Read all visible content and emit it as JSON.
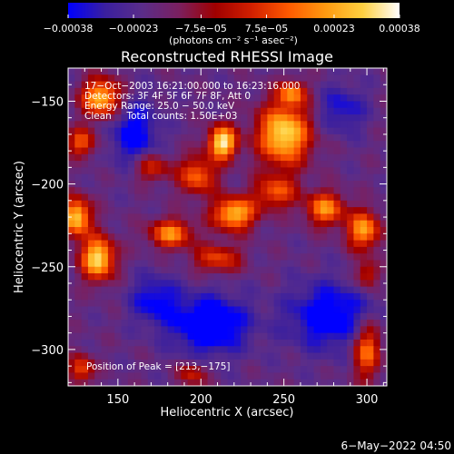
{
  "chart_data": {
    "type": "heatmap",
    "title": "Reconstructed RHESSI Image",
    "xlabel": "Heliocentric X (arcsec)",
    "ylabel": "Heliocentric Y (arcsec)",
    "xlim": [
      120,
      312
    ],
    "ylim": [
      -322,
      -130
    ],
    "x_ticks": [
      150,
      200,
      250,
      300
    ],
    "x_tick_labels": [
      "150",
      "200",
      "250",
      "300"
    ],
    "y_ticks": [
      -150,
      -200,
      -250,
      -300
    ],
    "y_tick_labels": [
      "−150",
      "−200",
      "−250",
      "−300"
    ],
    "colorbar": {
      "range": [
        -0.00038,
        0.00038
      ],
      "ticks": [
        -0.00038,
        -0.00023,
        -7.5e-05,
        7.5e-05,
        0.00023,
        0.00038
      ],
      "tick_labels": [
        "−0.00038",
        "−0.00023",
        "−7.5e−05",
        "7.5e−05",
        "0.00023",
        "0.00038"
      ],
      "unit_label": "(photons cm⁻² s⁻¹ asec⁻²)"
    },
    "annotations": [
      "17−Oct−2003 16:21:00.000 to 16:23:16.000",
      "Detectors: 3F 4F 5F 6F 7F 8F, Att 0",
      "Energy Range: 25.0 − 50.0 keV",
      "Clean     Total counts: 1.50E+03"
    ],
    "peak_label": "Position of Peak = [213,−175]",
    "peak": [
      213,
      -175
    ],
    "sources": [
      {
        "x": 213,
        "y": -175,
        "sx": 6,
        "sy": 7,
        "amp": 1.0
      },
      {
        "x": 250,
        "y": -170,
        "sx": 11,
        "sy": 13,
        "amp": 0.95
      },
      {
        "x": 245,
        "y": -205,
        "sx": 9,
        "sy": 7,
        "amp": 0.55
      },
      {
        "x": 220,
        "y": -218,
        "sx": 9,
        "sy": 7,
        "amp": 0.85
      },
      {
        "x": 198,
        "y": -195,
        "sx": 8,
        "sy": 8,
        "amp": 0.6
      },
      {
        "x": 182,
        "y": -230,
        "sx": 9,
        "sy": 6,
        "amp": 0.7
      },
      {
        "x": 210,
        "y": -245,
        "sx": 10,
        "sy": 6,
        "amp": 0.5
      },
      {
        "x": 140,
        "y": -148,
        "sx": 8,
        "sy": 8,
        "amp": 0.85
      },
      {
        "x": 125,
        "y": -220,
        "sx": 6,
        "sy": 8,
        "amp": 0.9
      },
      {
        "x": 138,
        "y": -245,
        "sx": 7,
        "sy": 9,
        "amp": 0.95
      },
      {
        "x": 128,
        "y": -175,
        "sx": 6,
        "sy": 6,
        "amp": 0.55
      },
      {
        "x": 275,
        "y": -215,
        "sx": 8,
        "sy": 7,
        "amp": 0.7
      },
      {
        "x": 298,
        "y": -228,
        "sx": 7,
        "sy": 8,
        "amp": 0.75
      },
      {
        "x": 170,
        "y": -190,
        "sx": 8,
        "sy": 6,
        "amp": 0.45
      },
      {
        "x": 300,
        "y": -300,
        "sx": 6,
        "sy": 12,
        "amp": 0.65
      },
      {
        "x": 128,
        "y": -312,
        "sx": 5,
        "sy": 6,
        "amp": 0.55
      },
      {
        "x": 195,
        "y": -315,
        "sx": 6,
        "sy": 5,
        "amp": 0.4
      },
      {
        "x": 300,
        "y": -255,
        "sx": 5,
        "sy": 6,
        "amp": 0.45
      },
      {
        "x": 255,
        "y": -145,
        "sx": 6,
        "sy": 5,
        "amp": 0.6
      }
    ],
    "negative_regions": [
      {
        "x": 205,
        "y": -285,
        "sx": 16,
        "sy": 12,
        "amp": -0.55
      },
      {
        "x": 278,
        "y": -280,
        "sx": 18,
        "sy": 14,
        "amp": -0.45
      },
      {
        "x": 160,
        "y": -170,
        "sx": 10,
        "sy": 14,
        "amp": -0.4
      },
      {
        "x": 172,
        "y": -270,
        "sx": 10,
        "sy": 10,
        "amp": -0.35
      },
      {
        "x": 285,
        "y": -155,
        "sx": 10,
        "sy": 10,
        "amp": -0.3
      }
    ],
    "colors": {
      "colormap": [
        "#0000ff",
        "#3a1f9f",
        "#5a2d8a",
        "#7a2060",
        "#a00000",
        "#d22000",
        "#ff5a00",
        "#ff9a10",
        "#ffd040",
        "#ffffff"
      ],
      "background": "#000000",
      "foreground": "#ffffff"
    }
  },
  "footer": {
    "timestamp": "6−May−2022 04:50"
  }
}
